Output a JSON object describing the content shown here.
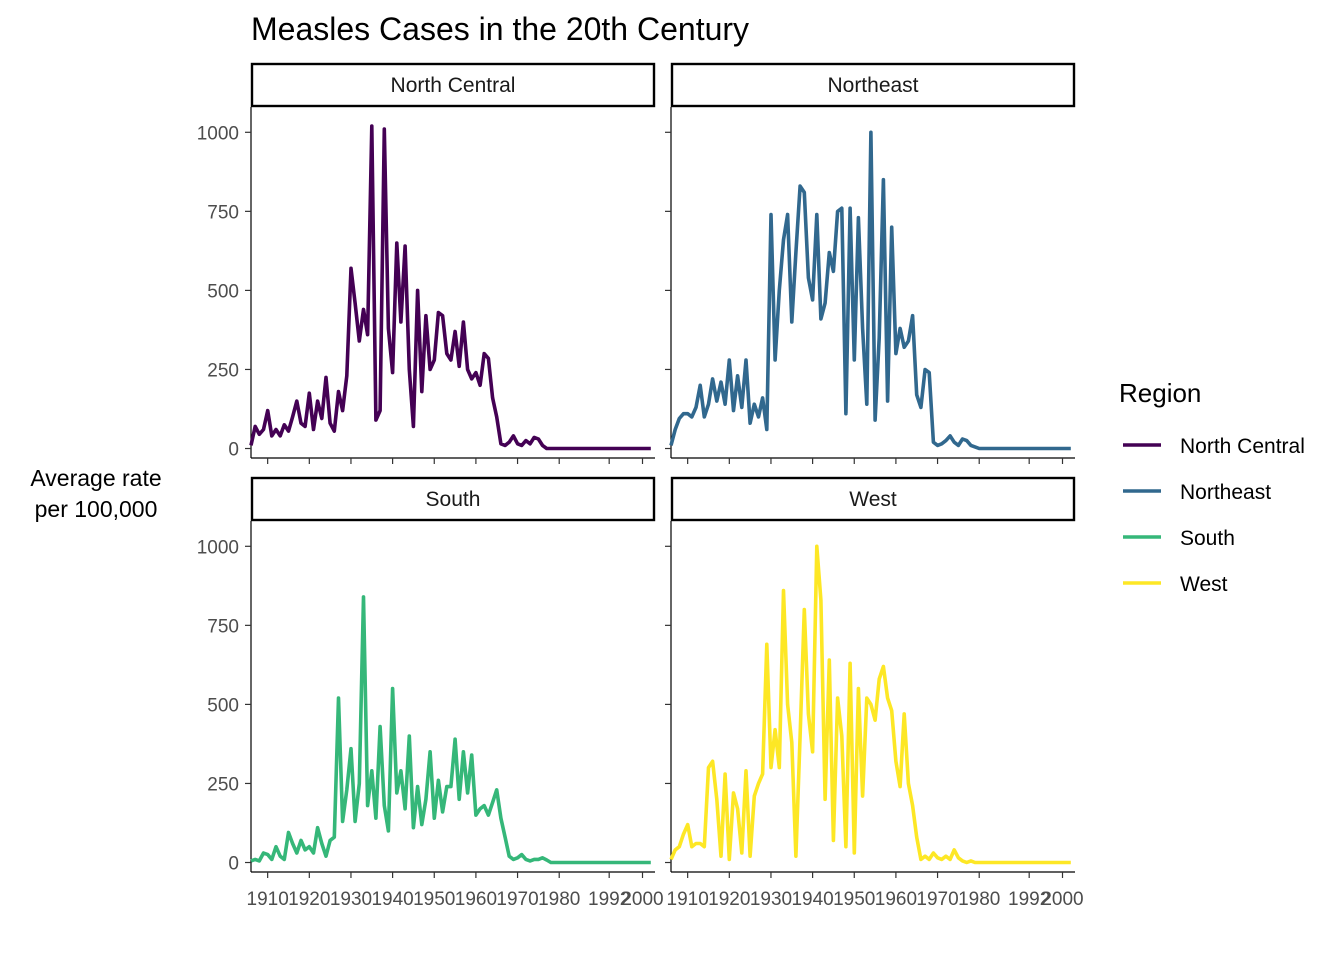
{
  "chart_data": {
    "type": "line",
    "title": "Measles Cases in the 20th Century",
    "xlabel": "",
    "ylabel_lines": [
      "Average rate",
      "per 100,000"
    ],
    "xlim": [
      1906,
      2003
    ],
    "ylim": [
      -30,
      1080
    ],
    "x_ticks": [
      1910,
      1920,
      1930,
      1940,
      1950,
      1960,
      1970,
      1980,
      1992,
      2000
    ],
    "y_ticks": [
      0,
      250,
      500,
      750,
      1000
    ],
    "grid": false,
    "legend": {
      "title": "Region",
      "position": "right",
      "items": [
        "North Central",
        "Northeast",
        "South",
        "West"
      ]
    },
    "panels": [
      {
        "name": "North Central",
        "color": "#440154",
        "x": [
          1906,
          1907,
          1908,
          1909,
          1910,
          1911,
          1912,
          1913,
          1914,
          1915,
          1916,
          1917,
          1918,
          1919,
          1920,
          1921,
          1922,
          1923,
          1924,
          1925,
          1926,
          1927,
          1928,
          1929,
          1930,
          1931,
          1932,
          1933,
          1934,
          1935,
          1936,
          1937,
          1938,
          1939,
          1940,
          1941,
          1942,
          1943,
          1944,
          1945,
          1946,
          1947,
          1948,
          1949,
          1950,
          1951,
          1952,
          1953,
          1954,
          1955,
          1956,
          1957,
          1958,
          1959,
          1960,
          1961,
          1962,
          1963,
          1964,
          1965,
          1966,
          1967,
          1968,
          1969,
          1970,
          1971,
          1972,
          1973,
          1974,
          1975,
          1976,
          1977,
          1978,
          1979,
          1980,
          1985,
          1990,
          1995,
          2000,
          2002
        ],
        "y": [
          10,
          70,
          45,
          60,
          120,
          40,
          60,
          40,
          75,
          55,
          100,
          150,
          80,
          70,
          175,
          60,
          150,
          95,
          225,
          80,
          55,
          180,
          120,
          230,
          570,
          460,
          340,
          440,
          360,
          1020,
          90,
          120,
          1010,
          380,
          240,
          650,
          400,
          640,
          250,
          70,
          500,
          180,
          420,
          250,
          280,
          430,
          420,
          300,
          280,
          370,
          260,
          400,
          250,
          220,
          240,
          200,
          300,
          285,
          160,
          100,
          15,
          10,
          20,
          40,
          15,
          10,
          25,
          15,
          35,
          30,
          10,
          0,
          0,
          0,
          0,
          0,
          0,
          0,
          0,
          0
        ]
      },
      {
        "name": "Northeast",
        "color": "#31688e",
        "x": [
          1906,
          1907,
          1908,
          1909,
          1910,
          1911,
          1912,
          1913,
          1914,
          1915,
          1916,
          1917,
          1918,
          1919,
          1920,
          1921,
          1922,
          1923,
          1924,
          1925,
          1926,
          1927,
          1928,
          1929,
          1930,
          1931,
          1932,
          1933,
          1934,
          1935,
          1936,
          1937,
          1938,
          1939,
          1940,
          1941,
          1942,
          1943,
          1944,
          1945,
          1946,
          1947,
          1948,
          1949,
          1950,
          1951,
          1952,
          1953,
          1954,
          1955,
          1956,
          1957,
          1958,
          1959,
          1960,
          1961,
          1962,
          1963,
          1964,
          1965,
          1966,
          1967,
          1968,
          1969,
          1970,
          1971,
          1972,
          1973,
          1974,
          1975,
          1976,
          1977,
          1978,
          1979,
          1980,
          1985,
          1990,
          1995,
          2000,
          2002
        ],
        "y": [
          10,
          60,
          95,
          110,
          110,
          100,
          130,
          200,
          100,
          140,
          220,
          150,
          210,
          140,
          280,
          120,
          230,
          130,
          280,
          80,
          140,
          100,
          160,
          60,
          740,
          280,
          500,
          660,
          740,
          400,
          620,
          830,
          810,
          540,
          470,
          740,
          410,
          460,
          620,
          560,
          750,
          760,
          110,
          760,
          280,
          730,
          380,
          140,
          1000,
          90,
          350,
          850,
          150,
          700,
          300,
          380,
          320,
          340,
          420,
          170,
          130,
          250,
          240,
          20,
          10,
          15,
          25,
          40,
          20,
          10,
          30,
          25,
          10,
          5,
          0,
          0,
          0,
          0,
          0,
          0
        ]
      },
      {
        "name": "South",
        "color": "#35b779",
        "x": [
          1906,
          1907,
          1908,
          1909,
          1910,
          1911,
          1912,
          1913,
          1914,
          1915,
          1916,
          1917,
          1918,
          1919,
          1920,
          1921,
          1922,
          1923,
          1924,
          1925,
          1926,
          1927,
          1928,
          1929,
          1930,
          1931,
          1932,
          1933,
          1934,
          1935,
          1936,
          1937,
          1938,
          1939,
          1940,
          1941,
          1942,
          1943,
          1944,
          1945,
          1946,
          1947,
          1948,
          1949,
          1950,
          1951,
          1952,
          1953,
          1954,
          1955,
          1956,
          1957,
          1958,
          1959,
          1960,
          1961,
          1962,
          1963,
          1964,
          1965,
          1966,
          1967,
          1968,
          1969,
          1970,
          1971,
          1972,
          1973,
          1974,
          1975,
          1976,
          1977,
          1978,
          1979,
          1980,
          1985,
          1990,
          1995,
          2000,
          2002
        ],
        "y": [
          5,
          10,
          5,
          30,
          25,
          10,
          50,
          20,
          10,
          95,
          60,
          30,
          70,
          40,
          50,
          30,
          110,
          60,
          20,
          70,
          80,
          520,
          130,
          230,
          360,
          130,
          250,
          840,
          180,
          290,
          140,
          430,
          180,
          100,
          550,
          220,
          290,
          170,
          400,
          110,
          240,
          120,
          200,
          350,
          140,
          260,
          160,
          240,
          240,
          390,
          200,
          350,
          220,
          340,
          150,
          170,
          180,
          150,
          190,
          230,
          140,
          80,
          20,
          10,
          15,
          25,
          10,
          5,
          10,
          10,
          15,
          8,
          0,
          0,
          0,
          0,
          0,
          0,
          0,
          0
        ]
      },
      {
        "name": "West",
        "color": "#fde725",
        "x": [
          1906,
          1907,
          1908,
          1909,
          1910,
          1911,
          1912,
          1913,
          1914,
          1915,
          1916,
          1917,
          1918,
          1919,
          1920,
          1921,
          1922,
          1923,
          1924,
          1925,
          1926,
          1927,
          1928,
          1929,
          1930,
          1931,
          1932,
          1933,
          1934,
          1935,
          1936,
          1937,
          1938,
          1939,
          1940,
          1941,
          1942,
          1943,
          1944,
          1945,
          1946,
          1947,
          1948,
          1949,
          1950,
          1951,
          1952,
          1953,
          1954,
          1955,
          1956,
          1957,
          1958,
          1959,
          1960,
          1961,
          1962,
          1963,
          1964,
          1965,
          1966,
          1967,
          1968,
          1969,
          1970,
          1971,
          1972,
          1973,
          1974,
          1975,
          1976,
          1977,
          1978,
          1979,
          1980,
          1985,
          1990,
          1995,
          2000,
          2002
        ],
        "y": [
          10,
          40,
          50,
          90,
          120,
          50,
          60,
          60,
          50,
          300,
          320,
          200,
          20,
          280,
          10,
          220,
          170,
          30,
          290,
          20,
          210,
          250,
          280,
          690,
          300,
          420,
          300,
          860,
          500,
          380,
          20,
          400,
          800,
          470,
          350,
          1000,
          830,
          200,
          640,
          70,
          520,
          400,
          50,
          630,
          30,
          550,
          210,
          520,
          500,
          450,
          580,
          620,
          520,
          480,
          320,
          240,
          470,
          250,
          180,
          80,
          10,
          20,
          10,
          30,
          15,
          10,
          20,
          10,
          40,
          15,
          5,
          0,
          5,
          0,
          0,
          0,
          0,
          0,
          0,
          0
        ]
      }
    ]
  }
}
